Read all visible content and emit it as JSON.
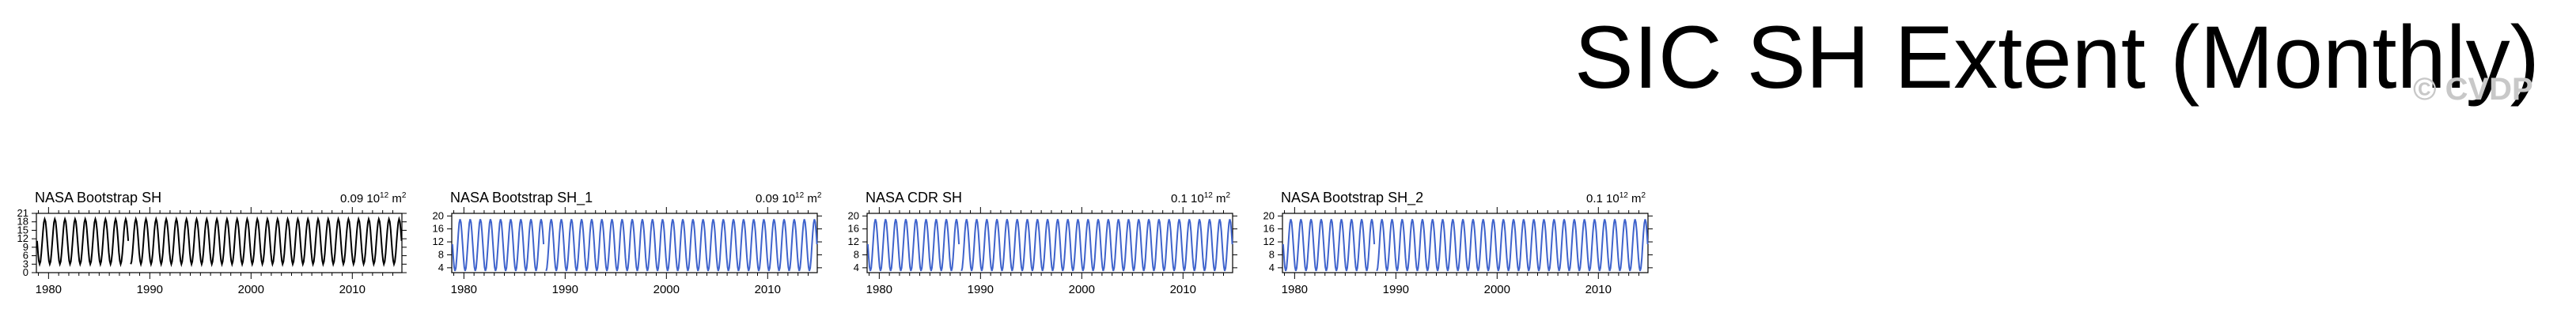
{
  "title": "SIC SH Extent (Monthly)",
  "watermark": "© CVDP",
  "colors": {
    "black_line": "#000000",
    "blue_line": "#3f63cc",
    "axis": "#000000"
  },
  "chart_data": [
    {
      "type": "line",
      "title": "NASA Bootstrap SH",
      "units_base": "0.09 10",
      "units_exp": "12",
      "units_tail": " m",
      "units_unit_exp": "2",
      "color": "#000000",
      "x_range": [
        1978.8,
        2014.9
      ],
      "x_ticks": [
        1980,
        1990,
        2000,
        2010
      ],
      "x_tick_labels": [
        "1980",
        "1990",
        "2000",
        "2010"
      ],
      "ylim": [
        0,
        21
      ],
      "y_ticks": [
        0,
        3,
        6,
        9,
        12,
        15,
        18,
        21
      ],
      "y_tick_labels": [
        "0",
        "3",
        "6",
        "9",
        "12",
        "15",
        "18",
        "21"
      ],
      "series": [
        {
          "name": "NASA Bootstrap SH",
          "start_year": 1978.87,
          "end_year": 2014.92,
          "seasonal_min": 3.0,
          "seasonal_max": 19.0,
          "min_month": 2,
          "max_month": 9,
          "gap": [
            1987.9,
            1988.05
          ]
        }
      ]
    },
    {
      "type": "line",
      "title": "NASA Bootstrap SH_1",
      "units_base": "0.09 10",
      "units_exp": "12",
      "units_tail": " m",
      "units_unit_exp": "2",
      "color": "#3f63cc",
      "x_range": [
        1978.8,
        2014.9
      ],
      "x_ticks": [
        1980,
        1990,
        2000,
        2010
      ],
      "x_tick_labels": [
        "1980",
        "1990",
        "2000",
        "2010"
      ],
      "ylim": [
        2.5,
        20.8
      ],
      "y_ticks": [
        4,
        8,
        12,
        16,
        20
      ],
      "y_tick_labels": [
        "4",
        "8",
        "12",
        "16",
        "20"
      ],
      "series": [
        {
          "name": "NASA Bootstrap SH_1",
          "start_year": 1978.87,
          "end_year": 2014.92,
          "seasonal_min": 3.0,
          "seasonal_max": 19.0,
          "min_month": 2,
          "max_month": 9,
          "gap": [
            1987.9,
            1988.05
          ]
        }
      ]
    },
    {
      "type": "line",
      "title": "NASA CDR SH",
      "units_base": "0.1 10",
      "units_exp": "12",
      "units_tail": " m",
      "units_unit_exp": "2",
      "color": "#3f63cc",
      "x_range": [
        1978.8,
        2014.9
      ],
      "x_ticks": [
        1980,
        1990,
        2000,
        2010
      ],
      "x_tick_labels": [
        "1980",
        "1990",
        "2000",
        "2010"
      ],
      "ylim": [
        2.5,
        20.8
      ],
      "y_ticks": [
        4,
        8,
        12,
        16,
        20
      ],
      "y_tick_labels": [
        "4",
        "8",
        "12",
        "16",
        "20"
      ],
      "series": [
        {
          "name": "NASA CDR SH",
          "start_year": 1978.87,
          "end_year": 2014.92,
          "seasonal_min": 3.0,
          "seasonal_max": 19.0,
          "min_month": 2,
          "max_month": 9,
          "gap": [
            1987.9,
            1988.05
          ]
        }
      ]
    },
    {
      "type": "line",
      "title": "NASA Bootstrap SH_2",
      "units_base": "0.1 10",
      "units_exp": "12",
      "units_tail": " m",
      "units_unit_exp": "2",
      "color": "#3f63cc",
      "x_range": [
        1978.8,
        2014.9
      ],
      "x_ticks": [
        1980,
        1990,
        2000,
        2010
      ],
      "x_tick_labels": [
        "1980",
        "1990",
        "2000",
        "2010"
      ],
      "ylim": [
        2.5,
        20.8
      ],
      "y_ticks": [
        4,
        8,
        12,
        16,
        20
      ],
      "y_tick_labels": [
        "4",
        "8",
        "12",
        "16",
        "20"
      ],
      "series": [
        {
          "name": "NASA Bootstrap SH_2",
          "start_year": 1978.87,
          "end_year": 2014.92,
          "seasonal_min": 3.0,
          "seasonal_max": 19.0,
          "min_month": 2,
          "max_month": 9,
          "gap": [
            1987.9,
            1988.05
          ]
        }
      ]
    }
  ]
}
